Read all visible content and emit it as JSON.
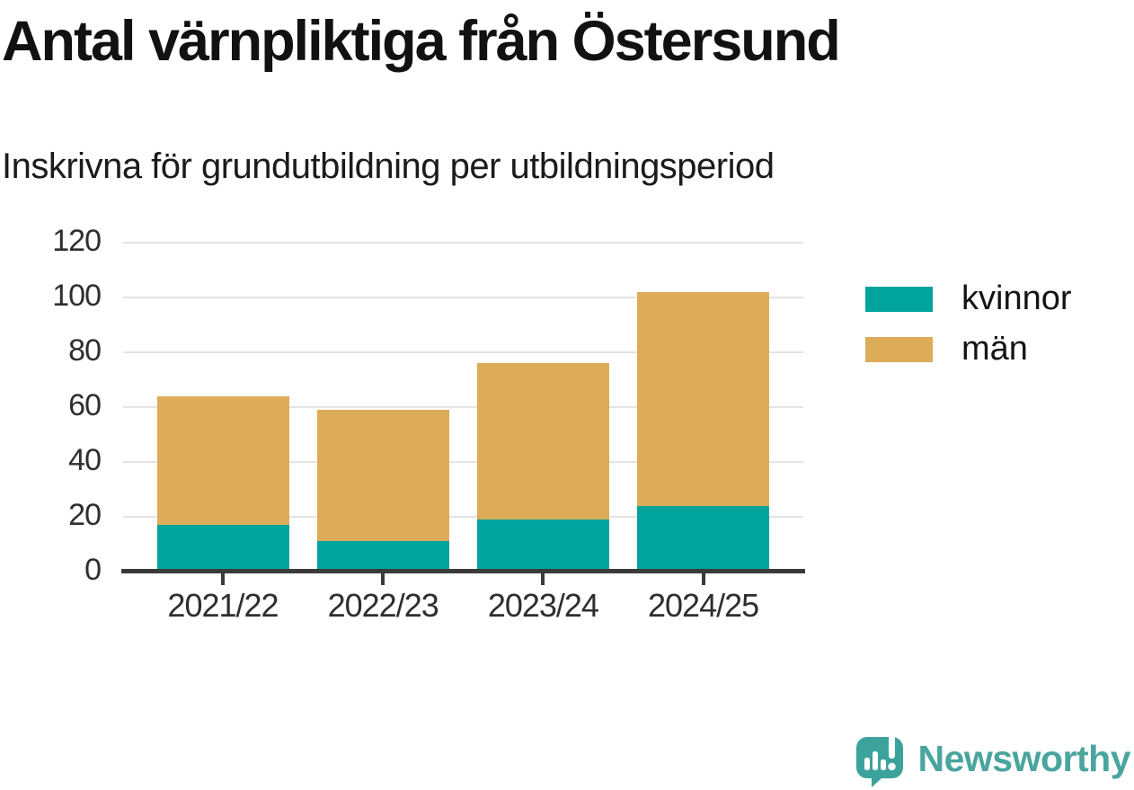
{
  "header": {
    "title": "Antal värnpliktiga från Östersund",
    "subtitle": "Inskrivna för grundutbildning per utbildningsperiod"
  },
  "chart_data": {
    "type": "bar",
    "stacked": true,
    "title": "Antal värnpliktiga från Östersund",
    "subtitle": "Inskrivna för grundutbildning per utbildningsperiod",
    "categories": [
      "2021/22",
      "2022/23",
      "2023/24",
      "2024/25"
    ],
    "series": [
      {
        "name": "kvinnor",
        "color": "#00a49c",
        "values": [
          17,
          11,
          19,
          24
        ]
      },
      {
        "name": "män",
        "color": "#dcac59",
        "values": [
          47,
          48,
          57,
          78
        ]
      }
    ],
    "stacked_totals": [
      64,
      59,
      76,
      102
    ],
    "xlabel": "",
    "ylabel": "",
    "ylim": [
      0,
      120
    ],
    "yticks": [
      0,
      20,
      40,
      60,
      80,
      100,
      120
    ],
    "grid": true,
    "legend_position": "right"
  },
  "colors": {
    "kvinnor": "#00a49c",
    "man": "#dcac59",
    "axis": "#3a3a3a",
    "gridline": "#e4e4e4",
    "text": "#2e2e2e",
    "brand_teal": "#4aa59e",
    "logo_bubble": "#3ba39c"
  },
  "footer": {
    "brand": "Newsworthy"
  }
}
